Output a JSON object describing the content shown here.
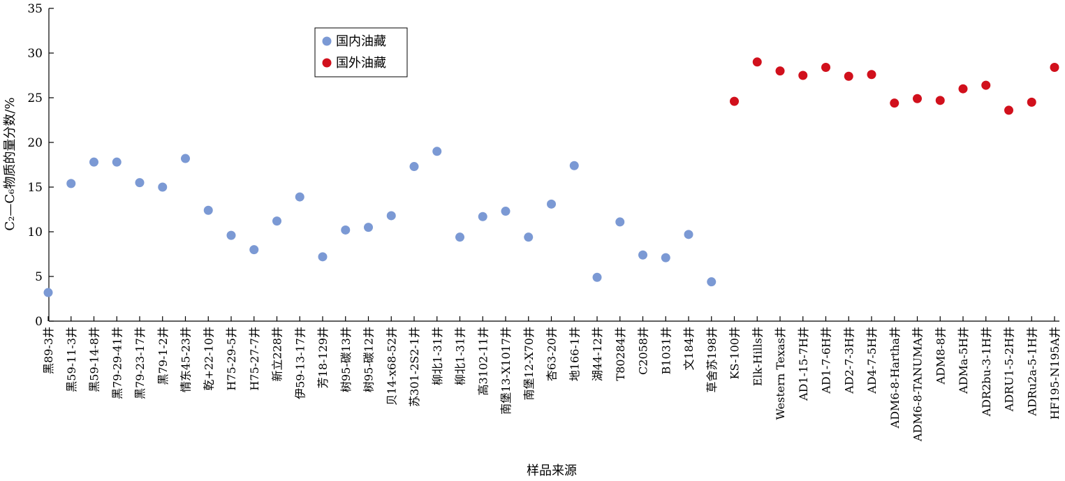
{
  "chart_data": {
    "type": "scatter",
    "title": "",
    "xlabel": "样品来源",
    "ylabel": "C₂—C₆物质的量分数/%",
    "ylim": [
      0,
      35
    ],
    "yticks": [
      0,
      5,
      10,
      15,
      20,
      25,
      30,
      35
    ],
    "grid": false,
    "legend_position": "top-left",
    "categories": [
      "黑89-3井",
      "黑59-11-3井",
      "黑59-14-8井",
      "黑79-29-41井",
      "黑79-23-17井",
      "黑79-1-2井",
      "情东45-23井",
      "乾+22-10井",
      "H75-29-5井",
      "H75-27-7井",
      "新立228井",
      "伊59-13-17井",
      "芳18-129井",
      "树95-碳13井",
      "树95-碳12井",
      "贝14-x68-52井",
      "苏301-2S2-1井",
      "柳北1-31井",
      "柳北1-31井",
      "高3102-11井",
      "南堡13-X1017井",
      "南堡12-X70井",
      "杏63-20井",
      "地166-1井",
      "湖44-12井",
      "T80284井",
      "C2058井",
      "B1031井",
      "文184井",
      "草舍苏198井",
      "KS-100井",
      "Elk-Hills井",
      "Western Texas井",
      "AD1-15-7H井",
      "AD1-7-6H井",
      "AD2-7-3H井",
      "AD4-7-5H井",
      "ADM6-8-Hartha井",
      "ADM6-8-TANUMA井",
      "ADM8-8井",
      "ADMa-5H井",
      "ADR2bu-3-1H井",
      "ADRU1-5-2H井",
      "ADRu2a-5-1H井",
      "HF195-N195A井"
    ],
    "series": [
      {
        "name": "国内油藏",
        "color": "#7b99d4",
        "values": [
          3.2,
          15.4,
          17.8,
          17.8,
          15.5,
          15.0,
          18.2,
          12.4,
          9.6,
          8.0,
          11.2,
          13.9,
          7.2,
          10.2,
          10.5,
          11.8,
          17.3,
          19.0,
          9.4,
          11.7,
          12.3,
          9.4,
          13.1,
          17.4,
          4.9,
          11.1,
          7.4,
          7.1,
          9.7,
          4.4,
          null,
          null,
          null,
          null,
          null,
          null,
          null,
          null,
          null,
          null,
          null,
          null,
          null,
          null,
          null
        ]
      },
      {
        "name": "国外油藏",
        "color": "#d1101c",
        "values": [
          null,
          null,
          null,
          null,
          null,
          null,
          null,
          null,
          null,
          null,
          null,
          null,
          null,
          null,
          null,
          null,
          null,
          null,
          null,
          null,
          null,
          null,
          null,
          null,
          null,
          null,
          null,
          null,
          null,
          null,
          24.6,
          29.0,
          28.0,
          27.5,
          28.4,
          27.4,
          27.6,
          24.4,
          24.9,
          24.7,
          26.0,
          26.4,
          23.6,
          24.5,
          28.4
        ]
      }
    ]
  }
}
